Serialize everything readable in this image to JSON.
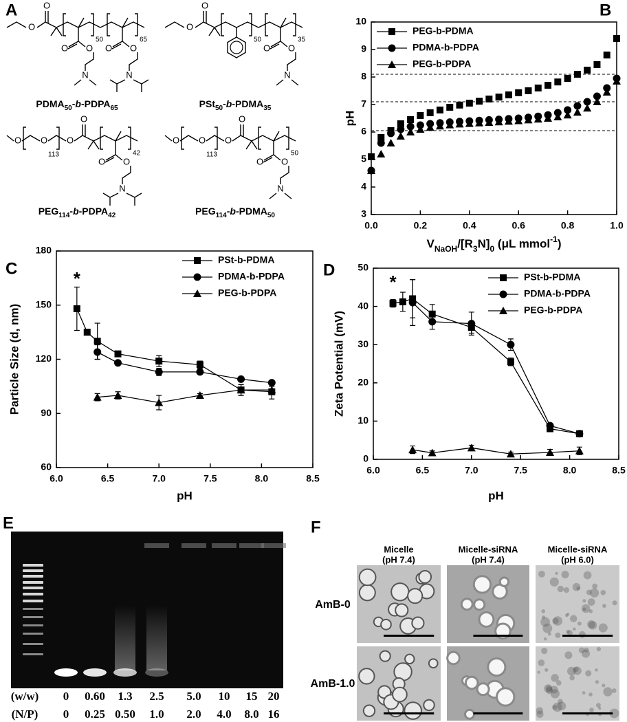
{
  "panel_labels": [
    "A",
    "B",
    "C",
    "D",
    "E",
    "F"
  ],
  "panel_a": {
    "structures": [
      {
        "label": [
          {
            "text": "PDMA"
          },
          {
            "text": "50",
            "style": "sub"
          },
          {
            "text": "-"
          },
          {
            "text": "b",
            "style": "italic"
          },
          {
            "text": "-PDPA"
          },
          {
            "text": "65",
            "style": "sub"
          }
        ],
        "atoms": [
          "O",
          "O",
          "O",
          "O",
          "N",
          "O",
          "O",
          "N"
        ],
        "subscripts": [
          "50",
          "65"
        ]
      },
      {
        "label": [
          {
            "text": "PSt"
          },
          {
            "text": "50",
            "style": "sub"
          },
          {
            "text": "-"
          },
          {
            "text": "b",
            "style": "italic"
          },
          {
            "text": "-PDMA"
          },
          {
            "text": "35",
            "style": "sub"
          }
        ],
        "atoms": [
          "O",
          "O",
          "O",
          "O",
          "N"
        ],
        "subscripts": [
          "50",
          "35"
        ]
      },
      {
        "label": [
          {
            "text": "PEG"
          },
          {
            "text": "114",
            "style": "sub"
          },
          {
            "text": "-"
          },
          {
            "text": "b",
            "style": "italic"
          },
          {
            "text": "-PDPA"
          },
          {
            "text": "42",
            "style": "sub"
          }
        ],
        "atoms": [
          "O",
          "O",
          "O",
          "O",
          "O",
          "O",
          "N"
        ],
        "subscripts": [
          "113",
          "42"
        ]
      },
      {
        "label": [
          {
            "text": "PEG"
          },
          {
            "text": "114",
            "style": "sub"
          },
          {
            "text": "-"
          },
          {
            "text": "b",
            "style": "italic"
          },
          {
            "text": "-PDMA"
          },
          {
            "text": "50",
            "style": "sub"
          }
        ],
        "atoms": [
          "O",
          "O",
          "O",
          "O",
          "O",
          "O",
          "N"
        ],
        "subscripts": [
          "113",
          "50"
        ]
      }
    ]
  },
  "chart_data": [
    {
      "type": "scatter",
      "x_label": [
        {
          "text": "V"
        },
        {
          "text": "NaOH",
          "style": "sub"
        },
        {
          "text": "/[R"
        },
        {
          "text": "3",
          "style": "sub"
        },
        {
          "text": "N]"
        },
        {
          "text": "0",
          "style": "sub"
        },
        {
          "text": " (μL mmol"
        },
        {
          "text": "-1",
          "style": "sup"
        },
        {
          "text": ")"
        }
      ],
      "y_label": "pH",
      "xlim": [
        0,
        1
      ],
      "ylim": [
        3,
        10
      ],
      "xticks": [
        {
          "value": 0,
          "label": "0.0"
        },
        {
          "value": 0.2,
          "label": "0.2"
        },
        {
          "value": 0.4,
          "label": "0.4"
        },
        {
          "value": 0.6,
          "label": "0.6"
        },
        {
          "value": 0.8,
          "label": "0.8"
        },
        {
          "value": 1,
          "label": "1.0"
        }
      ],
      "yticks": [
        3,
        4,
        5,
        6,
        7,
        8,
        9,
        10
      ],
      "grid": false,
      "legend": "upper left",
      "reference_lines": [
        8.1,
        7.1,
        6.05
      ],
      "series": [
        {
          "name": "PEG-b-PDMA",
          "color": "#000000",
          "marker": "square",
          "x": [
            0,
            0.04,
            0.08,
            0.12,
            0.16,
            0.2,
            0.24,
            0.28,
            0.32,
            0.36,
            0.4,
            0.44,
            0.48,
            0.52,
            0.56,
            0.6,
            0.64,
            0.68,
            0.72,
            0.76,
            0.8,
            0.84,
            0.88,
            0.92,
            0.96,
            1
          ],
          "values": [
            5.1,
            5.8,
            6.05,
            6.3,
            6.45,
            6.6,
            6.7,
            6.8,
            6.9,
            6.98,
            7.05,
            7.12,
            7.2,
            7.27,
            7.35,
            7.43,
            7.5,
            7.6,
            7.7,
            7.82,
            7.95,
            8.1,
            8.25,
            8.45,
            8.8,
            9.4
          ]
        },
        {
          "name": "PDMA-b-PDPA",
          "color": "#000000",
          "marker": "circle",
          "x": [
            0,
            0.04,
            0.08,
            0.12,
            0.16,
            0.2,
            0.24,
            0.28,
            0.32,
            0.36,
            0.4,
            0.44,
            0.48,
            0.52,
            0.56,
            0.6,
            0.64,
            0.68,
            0.72,
            0.76,
            0.8,
            0.84,
            0.88,
            0.92,
            0.96,
            1
          ],
          "values": [
            4.6,
            5.6,
            5.95,
            6.1,
            6.2,
            6.25,
            6.3,
            6.33,
            6.36,
            6.38,
            6.4,
            6.42,
            6.44,
            6.46,
            6.48,
            6.5,
            6.53,
            6.57,
            6.62,
            6.7,
            6.8,
            6.95,
            7.1,
            7.3,
            7.6,
            7.95
          ]
        },
        {
          "name": "PEG-b-PDPA",
          "color": "#000000",
          "marker": "triangle",
          "x": [
            0,
            0.04,
            0.08,
            0.12,
            0.16,
            0.2,
            0.24,
            0.28,
            0.32,
            0.36,
            0.4,
            0.44,
            0.48,
            0.52,
            0.56,
            0.6,
            0.64,
            0.68,
            0.72,
            0.76,
            0.8,
            0.84,
            0.88,
            0.92,
            0.96,
            1
          ],
          "values": [
            4.6,
            5.2,
            5.6,
            5.85,
            6.0,
            6.1,
            6.17,
            6.22,
            6.26,
            6.29,
            6.31,
            6.33,
            6.35,
            6.37,
            6.39,
            6.41,
            6.44,
            6.47,
            6.5,
            6.55,
            6.62,
            6.72,
            6.87,
            7.1,
            7.45,
            7.85
          ]
        }
      ]
    },
    {
      "type": "line",
      "x_label": "pH",
      "y_label": "Particle Size (d, nm)",
      "xlim": [
        6,
        8.5
      ],
      "ylim": [
        60,
        180
      ],
      "xticks": [
        {
          "value": 6,
          "label": "6.0"
        },
        {
          "value": 6.5,
          "label": "6.5"
        },
        {
          "value": 7,
          "label": "7.0"
        },
        {
          "value": 7.5,
          "label": "7.5"
        },
        {
          "value": 8,
          "label": "8.0"
        },
        {
          "value": 8.5,
          "label": "8.5"
        }
      ],
      "yticks": [
        60,
        90,
        120,
        150,
        180
      ],
      "grid": false,
      "legend": "upper right",
      "annotations": [
        {
          "text": "*",
          "x": 6.2,
          "y": 164
        }
      ],
      "series": [
        {
          "name": "PSt-b-PDMA",
          "color": "#000000",
          "marker": "square",
          "x": [
            6.2,
            6.3,
            6.4,
            6.6,
            7.0,
            7.4,
            7.8,
            8.1
          ],
          "values": [
            148,
            135,
            130,
            123,
            119,
            117,
            103,
            102
          ],
          "errors": [
            12,
            1,
            10,
            1,
            3,
            2,
            3,
            4
          ]
        },
        {
          "name": "PDMA-b-PDPA",
          "color": "#000000",
          "marker": "circle",
          "x": [
            6.4,
            6.6,
            7.0,
            7.4,
            7.8,
            8.1
          ],
          "values": [
            124,
            118,
            113,
            113,
            109,
            107
          ],
          "errors": [
            4,
            1,
            2,
            1,
            1,
            1
          ]
        },
        {
          "name": "PEG-b-PDPA",
          "color": "#000000",
          "marker": "triangle",
          "x": [
            6.4,
            6.6,
            7.0,
            7.4,
            7.8,
            8.1
          ],
          "values": [
            99,
            100,
            96,
            100,
            103,
            103
          ],
          "errors": [
            2,
            2,
            4,
            1,
            3,
            2
          ]
        }
      ]
    },
    {
      "type": "line",
      "x_label": "pH",
      "y_label": "Zeta Potential (mV)",
      "xlim": [
        6,
        8.5
      ],
      "ylim": [
        0,
        50
      ],
      "xticks": [
        {
          "value": 6,
          "label": "6.0"
        },
        {
          "value": 6.5,
          "label": "6.5"
        },
        {
          "value": 7,
          "label": "7.0"
        },
        {
          "value": 7.5,
          "label": "7.5"
        },
        {
          "value": 8,
          "label": "8.0"
        },
        {
          "value": 8.5,
          "label": "8.5"
        }
      ],
      "yticks": [
        0,
        10,
        20,
        30,
        40,
        50
      ],
      "grid": false,
      "legend": "upper right",
      "annotations": [
        {
          "text": "*",
          "x": 6.2,
          "y": 46
        }
      ],
      "series": [
        {
          "name": "PSt-b-PDMA",
          "color": "#000000",
          "marker": "square",
          "x": [
            6.2,
            6.3,
            6.4,
            6.6,
            7.0,
            7.4,
            7.8,
            8.1
          ],
          "values": [
            40.8,
            41.2,
            42,
            38,
            34.5,
            25.5,
            8,
            6.7
          ],
          "errors": [
            1,
            2.5,
            5,
            2.5,
            1.5,
            1,
            0.5,
            0.5
          ]
        },
        {
          "name": "PDMA-b-PDPA",
          "color": "#000000",
          "marker": "circle",
          "x": [
            6.4,
            6.6,
            7.0,
            7.4,
            7.8,
            8.1
          ],
          "values": [
            41,
            36,
            35.5,
            30,
            8.8,
            6.7
          ],
          "errors": [
            6,
            2,
            3,
            1.5,
            0.5,
            0.5
          ]
        },
        {
          "name": "PEG-b-PDPA",
          "color": "#000000",
          "marker": "triangle",
          "x": [
            6.4,
            6.6,
            7.0,
            7.4,
            7.8,
            8.1
          ],
          "values": [
            2.5,
            1.7,
            3,
            1.4,
            1.8,
            2.2
          ],
          "errors": [
            1,
            0.5,
            0.7,
            0.5,
            0.8,
            1
          ]
        }
      ]
    }
  ],
  "panel_e": {
    "rows": [
      {
        "label": "(w/w)",
        "values": [
          "0",
          "0.60",
          "1.3",
          "2.5",
          "5.0",
          "10",
          "15",
          "20"
        ]
      },
      {
        "label": "(N/P)",
        "values": [
          "0",
          "0.25",
          "0.50",
          "1.0",
          "2.0",
          "4.0",
          "8.0",
          "16"
        ]
      }
    ]
  },
  "panel_f": {
    "columns": [
      [
        "Micelle",
        "(pH 7.4)"
      ],
      [
        "Micelle-siRNA",
        "(pH 7.4)"
      ],
      [
        "Micelle-siRNA",
        "(pH 6.0)"
      ]
    ],
    "rows": [
      "AmB-0",
      "AmB-1.0"
    ]
  }
}
